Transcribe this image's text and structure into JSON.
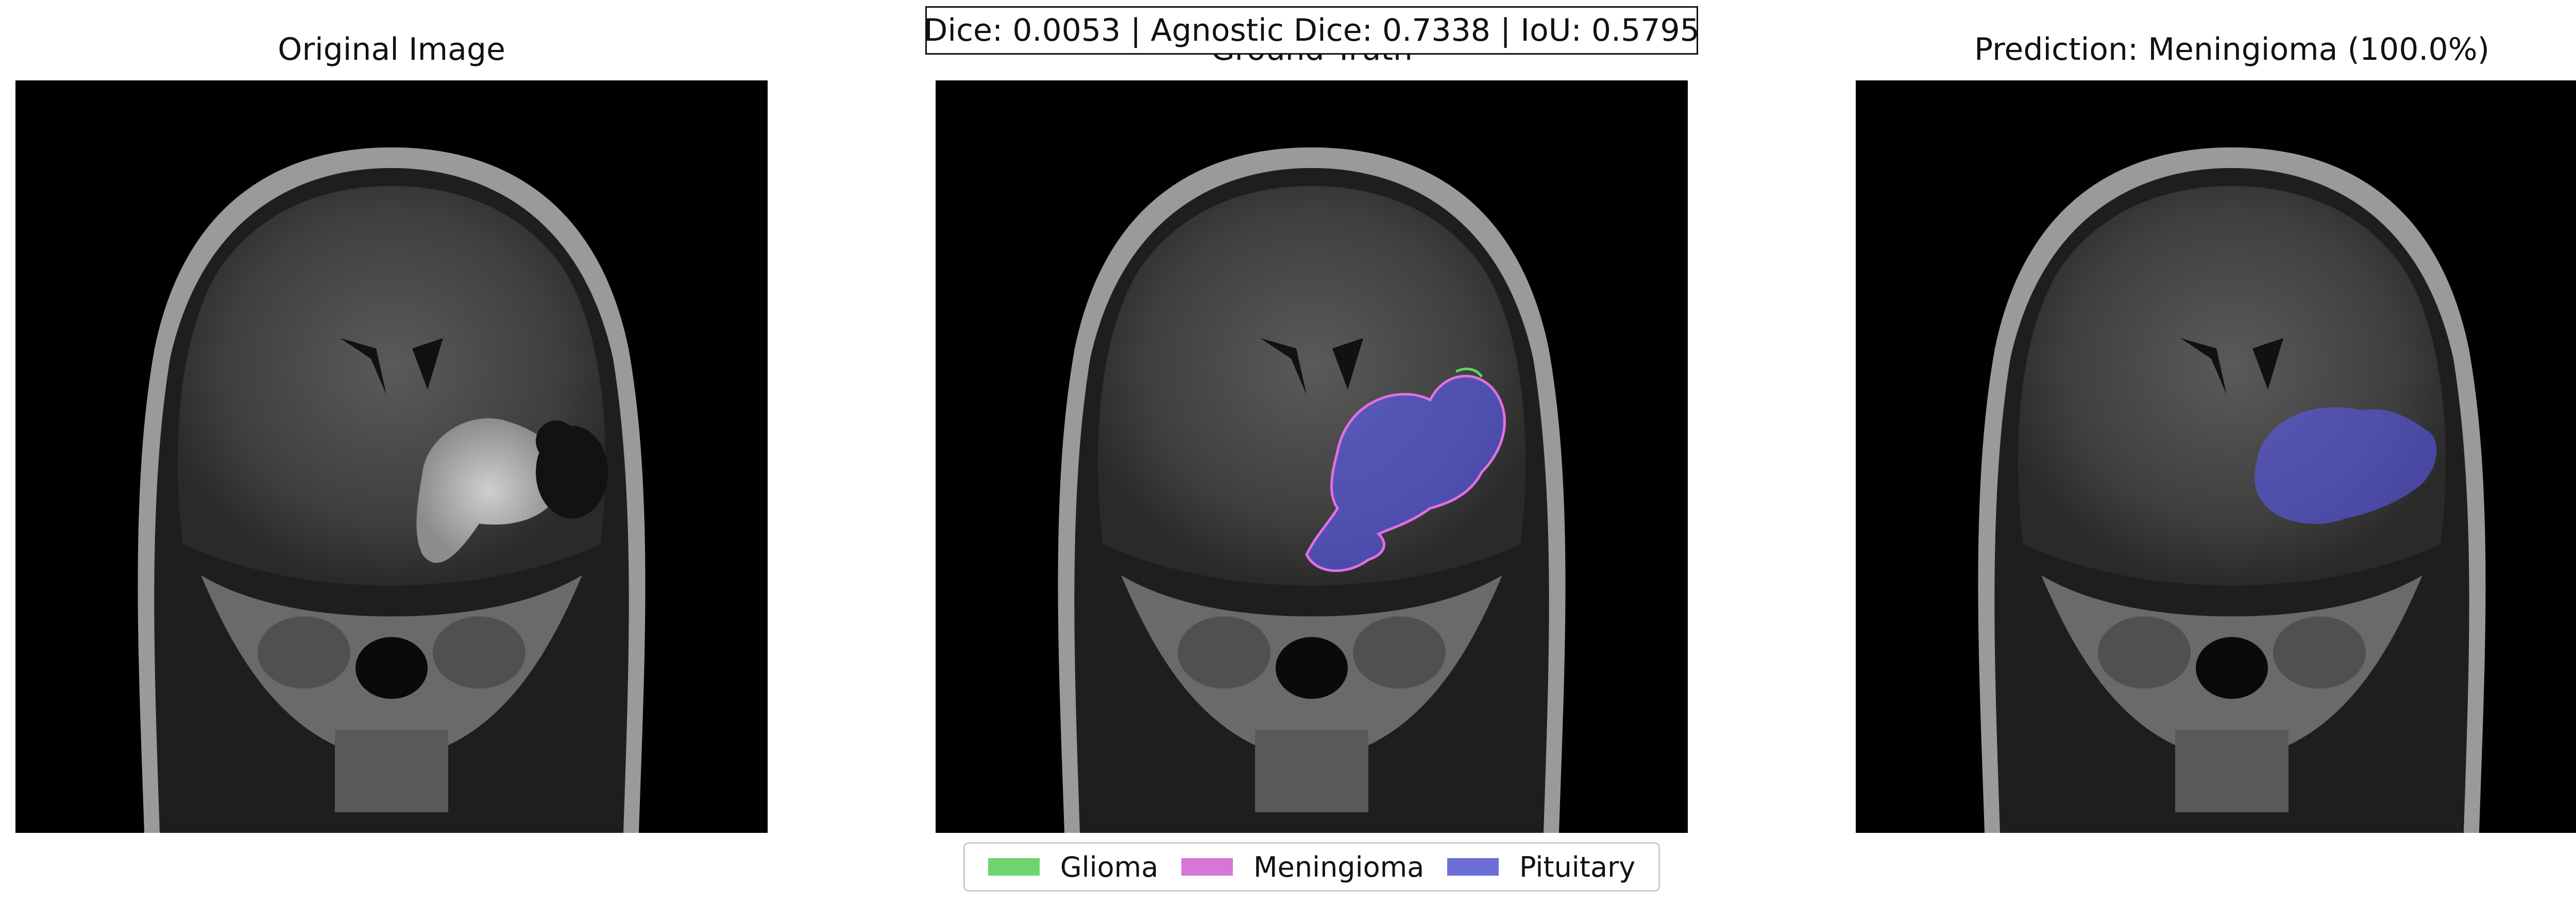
{
  "metrics": {
    "text": "Dice: 0.0053 | Agnostic Dice: 0.7338 | IoU: 0.5795"
  },
  "panels": [
    {
      "title": "Original Image"
    },
    {
      "title": "Ground Truth"
    },
    {
      "title": "Prediction: Meningioma (100.0%)"
    }
  ],
  "legend": {
    "items": [
      {
        "label": "Glioma",
        "color": "#6fd46f"
      },
      {
        "label": "Meningioma",
        "color": "#d676d6"
      },
      {
        "label": "Pituitary",
        "color": "#6e6ed8"
      }
    ]
  },
  "overlay_colors": {
    "pituitary_fill": "#5a5af0",
    "meningioma_outline": "#e070e0",
    "glioma_outline": "#5fd45f"
  }
}
